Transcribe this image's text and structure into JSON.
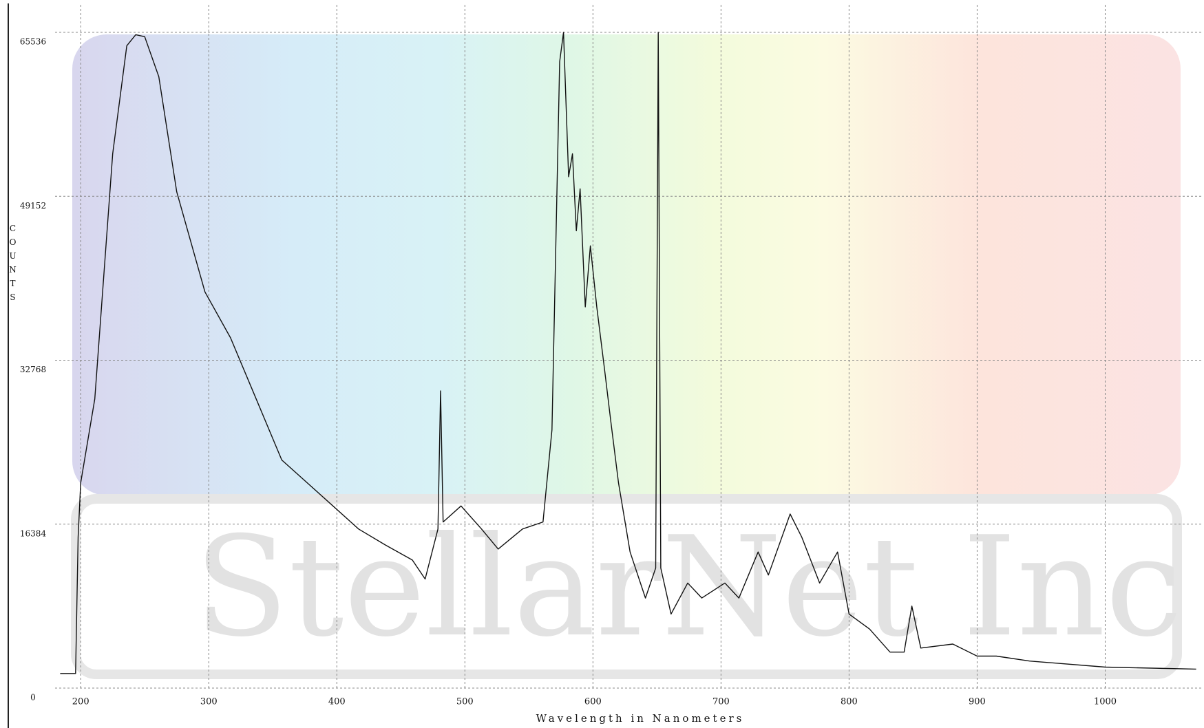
{
  "chart_data": {
    "type": "line",
    "watermark": "StellarNet Inc",
    "x_label": "Wavelength in Nanometers",
    "y_label": "COUNTS",
    "xlim": [
      180,
      1075
    ],
    "ylim": [
      0,
      65536
    ],
    "xticks": [
      200,
      300,
      400,
      500,
      600,
      700,
      800,
      900,
      1000
    ],
    "yticks": [
      0,
      16384,
      32768,
      49152,
      65536
    ],
    "grid": true,
    "series": [
      {
        "color": "#111111",
        "x": [
          184,
          196,
          198,
          200,
          211,
          225,
          236,
          243,
          250,
          261,
          275,
          297,
          317,
          337,
          357,
          377,
          397,
          417,
          438,
          459,
          469,
          479,
          481,
          483,
          497,
          513,
          526,
          545,
          561,
          568,
          574,
          577,
          581,
          584,
          587,
          590,
          594,
          598,
          603,
          609,
          614,
          620,
          629,
          641,
          649,
          651,
          653,
          661,
          674,
          685,
          703,
          714,
          729,
          737,
          754,
          763,
          777,
          791,
          800,
          816,
          832,
          843,
          849,
          856,
          881,
          900,
          915,
          941,
          1000,
          1071
        ],
        "values": [
          1460,
          1460,
          15100,
          20500,
          28900,
          53400,
          64200,
          65300,
          65100,
          61100,
          49600,
          39600,
          35000,
          28900,
          22800,
          20500,
          18200,
          15900,
          14300,
          12800,
          10900,
          15900,
          29700,
          16600,
          18200,
          15900,
          13900,
          15900,
          16600,
          25800,
          62600,
          65536,
          51100,
          53400,
          45700,
          49900,
          38100,
          44200,
          38100,
          31900,
          26600,
          20500,
          13600,
          9000,
          12000,
          65536,
          12000,
          7400,
          10500,
          9000,
          10500,
          9000,
          13600,
          11300,
          17400,
          15100,
          10500,
          13600,
          7400,
          5900,
          3600,
          3600,
          8200,
          4000,
          4400,
          3200,
          3200,
          2700,
          2100,
          1900
        ]
      }
    ]
  }
}
